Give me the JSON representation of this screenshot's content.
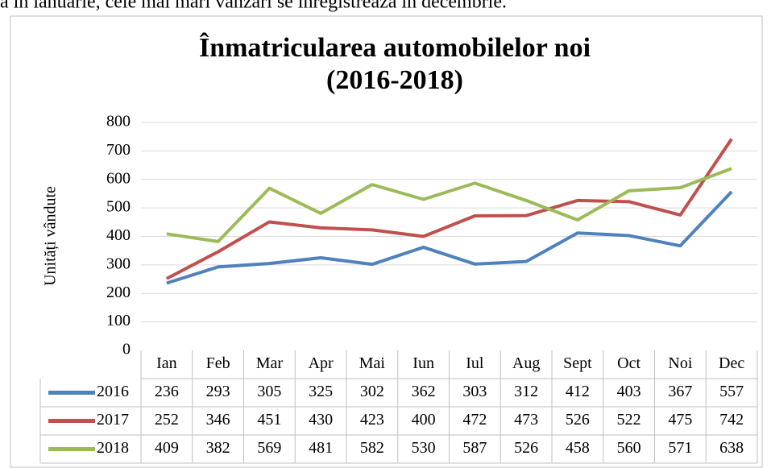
{
  "caption": "a în ianuarie, cele mai mari vânzări se înregistrează în decembrie.",
  "chart_data": {
    "type": "line",
    "title": "Înmatricularea automobilelor noi",
    "subtitle": "(2016-2018)",
    "y_label": "Unități vândute",
    "categories": [
      "Ian",
      "Feb",
      "Mar",
      "Apr",
      "Mai",
      "Iun",
      "Iul",
      "Aug",
      "Sept",
      "Oct",
      "Noi",
      "Dec"
    ],
    "series": [
      {
        "name": "2016",
        "color": "#4f81bd",
        "values": [
          236,
          293,
          305,
          325,
          302,
          362,
          303,
          312,
          412,
          403,
          367,
          557
        ]
      },
      {
        "name": "2017",
        "color": "#c0504d",
        "values": [
          252,
          346,
          451,
          430,
          423,
          400,
          472,
          473,
          526,
          522,
          475,
          742
        ]
      },
      {
        "name": "2018",
        "color": "#9bbb59",
        "values": [
          409,
          382,
          569,
          481,
          582,
          530,
          587,
          526,
          458,
          560,
          571,
          638
        ]
      }
    ],
    "ylim": [
      0,
      800
    ],
    "yticks": [
      0,
      100,
      200,
      300,
      400,
      500,
      600,
      700,
      800
    ],
    "grid": true,
    "data_table": true
  }
}
